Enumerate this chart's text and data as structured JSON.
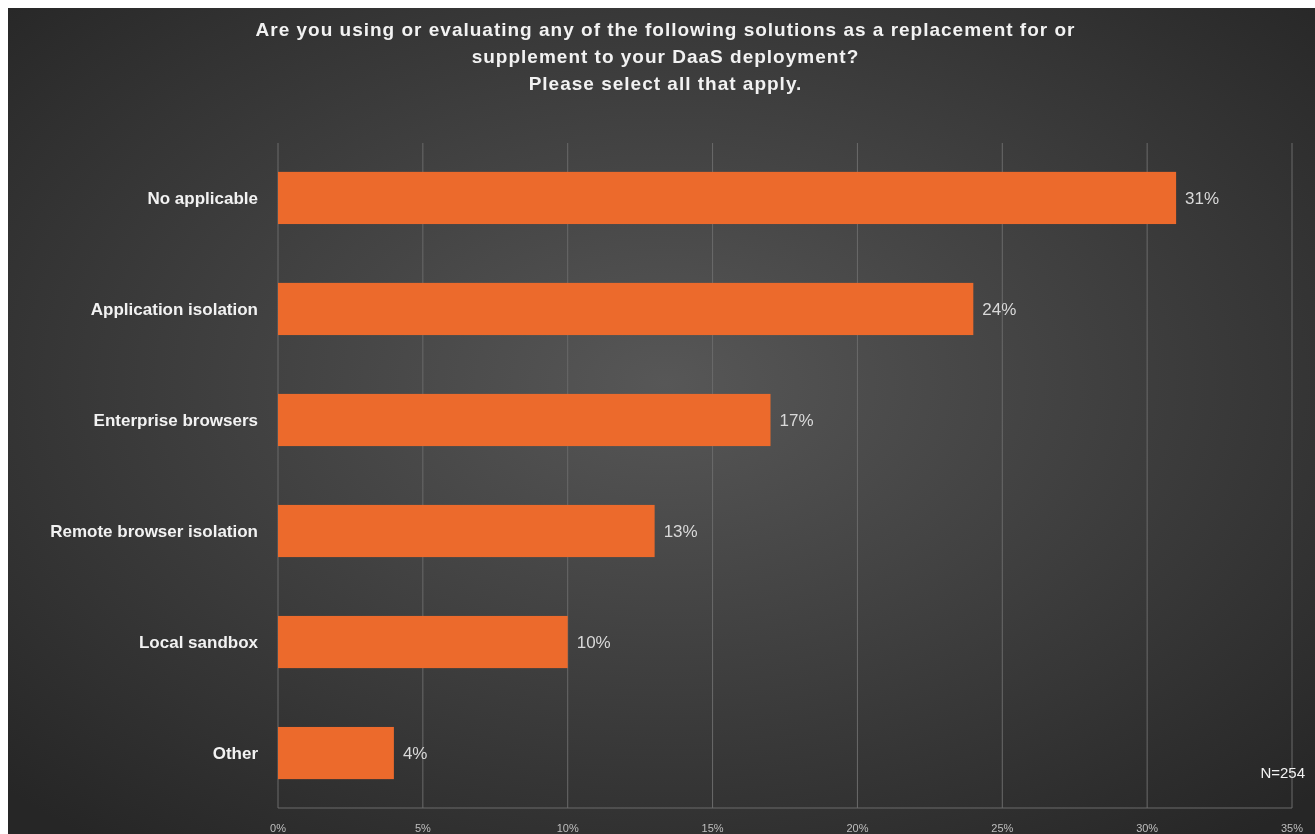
{
  "chart_data": {
    "type": "bar",
    "orientation": "horizontal",
    "title": "Are you using or evaluating any of the following solutions as a replacement for or\nsupplement to your DaaS deployment?",
    "subtitle": "Please select all that apply.",
    "categories": [
      "No applicable",
      "Application isolation",
      "Enterprise browsers",
      "Remote browser isolation",
      "Local sandbox",
      "Other"
    ],
    "values": [
      31,
      24,
      17,
      13,
      10,
      4
    ],
    "color": "#ec6a2c",
    "data_labels": true,
    "value_labels": [
      "31%",
      "24%",
      "17%",
      "13%",
      "10%",
      "4%"
    ],
    "xlim": [
      0,
      35
    ],
    "xticks": [
      {
        "value": 0,
        "label": "0%"
      },
      {
        "value": 5,
        "label": "5%"
      },
      {
        "value": 10,
        "label": "10%"
      },
      {
        "value": 15,
        "label": "15%"
      },
      {
        "value": 20,
        "label": "20%"
      },
      {
        "value": 25,
        "label": "25%"
      },
      {
        "value": 30,
        "label": "30%"
      },
      {
        "value": 35,
        "label": "35%"
      }
    ],
    "grid": "x",
    "annotations": [
      "N=254"
    ]
  }
}
